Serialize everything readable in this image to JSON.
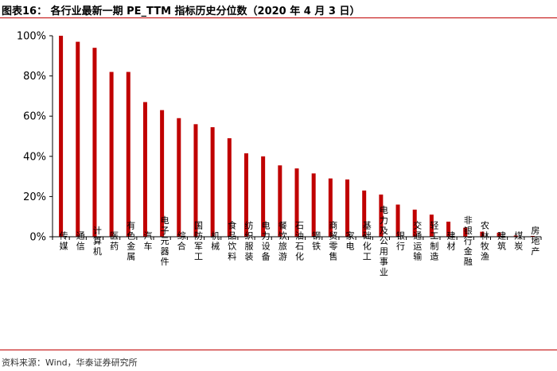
{
  "header": {
    "title": "图表16：  各行业最新一期 PE_TTM 指标历史分位数（2020 年 4 月 3 日）"
  },
  "footer": {
    "source": "资料来源：Wind，华泰证券研究所"
  },
  "colors": {
    "bar": "#c00000",
    "rule": "#c00000",
    "axis": "#000000"
  },
  "chart_data": {
    "type": "bar",
    "title": "",
    "xlabel": "",
    "ylabel": "",
    "ylim": [
      0,
      100
    ],
    "yticks": [
      "0%",
      "20%",
      "40%",
      "60%",
      "80%",
      "100%"
    ],
    "ytick_values": [
      0,
      20,
      40,
      60,
      80,
      100
    ],
    "grid": false,
    "legend": "none",
    "categories": [
      "传媒",
      "通信",
      "计算机",
      "医药",
      "有色金属",
      "汽车",
      "电子元器件",
      "综合",
      "国防军工",
      "机械",
      "食品饮料",
      "纺织服装",
      "电力设备",
      "餐饮旅游",
      "石油石化",
      "钢铁",
      "商贸零售",
      "家电",
      "基础化工",
      "电力及公用事业",
      "银行",
      "交通运输",
      "轻工制造",
      "建材",
      "非银行金融",
      "农林牧渔",
      "建筑",
      "煤炭",
      "房地产"
    ],
    "values": [
      100,
      97,
      94,
      82,
      82,
      67,
      63,
      59,
      56,
      54.5,
      49,
      41.5,
      40,
      35.5,
      34,
      31.5,
      29,
      28.5,
      23,
      21,
      16,
      13.5,
      11,
      7.5,
      4.5,
      2.5,
      2,
      0.6,
      0.4
    ]
  }
}
